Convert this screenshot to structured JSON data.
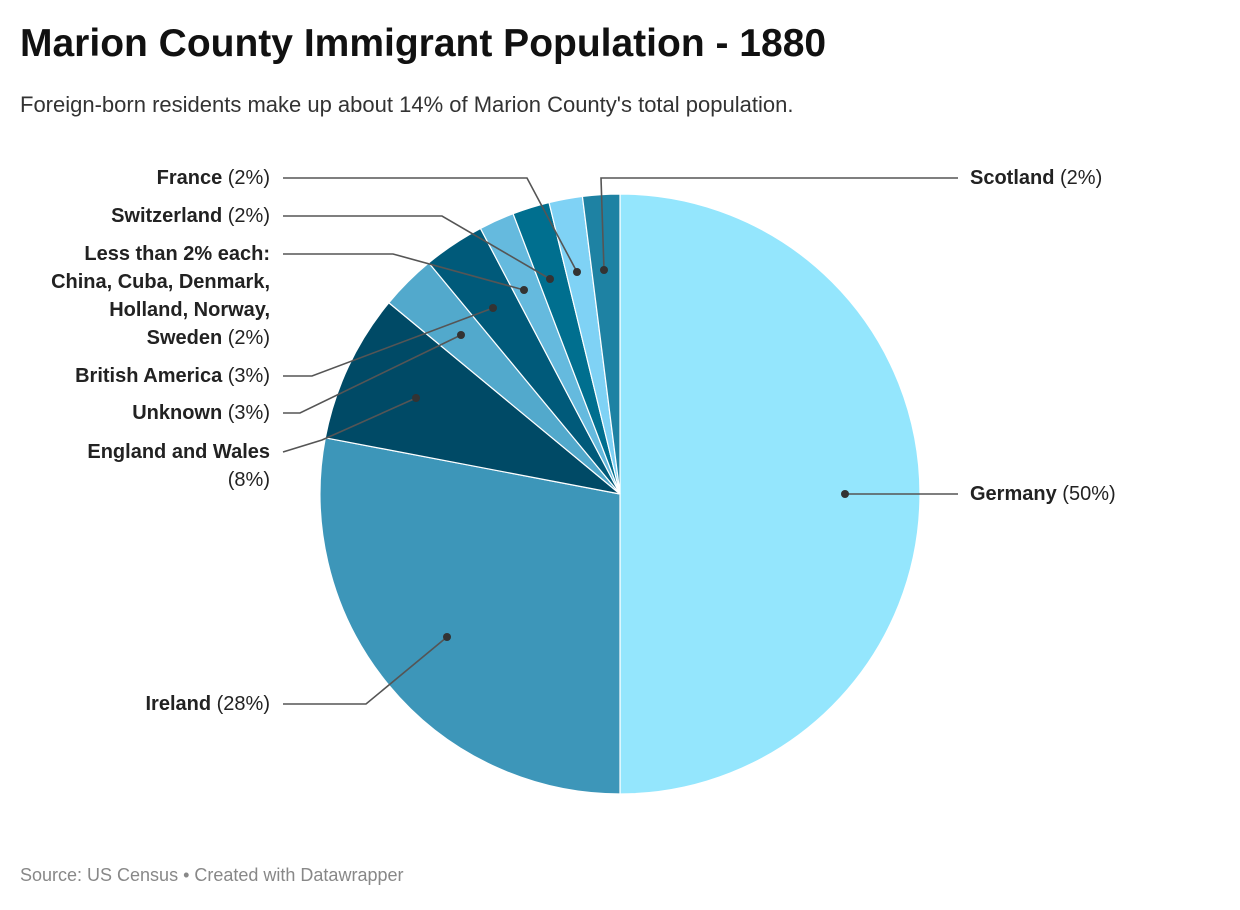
{
  "title": "Marion County Immigrant Population - 1880",
  "subtitle": "Foreign-born residents make up about 14% of Marion County's total population.",
  "footer": "Source: US Census • Created with Datawrapper",
  "chart_data": {
    "type": "pie",
    "start": "top, clockwise",
    "slices": [
      {
        "name": "Germany",
        "label": "(50%)",
        "value": 50,
        "color": "#94e6fd"
      },
      {
        "name": "Ireland",
        "label": "(28%)",
        "value": 28,
        "color": "#3d96b9"
      },
      {
        "name": "England and Wales",
        "label": "(8%)",
        "value": 8,
        "color": "#004a66"
      },
      {
        "name": "Unknown",
        "label": "(3%)",
        "value": 3,
        "color": "#52a9cc"
      },
      {
        "name": "British America",
        "label": "(3%)",
        "value": 3.3,
        "color": "#005a7a"
      },
      {
        "name": "Less than 2% each: China, Cuba, Denmark, Holland, Norway, Sweden",
        "label": "(2%)",
        "value": 1.9,
        "color": "#65bade"
      },
      {
        "name": "Switzerland",
        "label": "(2%)",
        "value": 2,
        "color": "#006f8f"
      },
      {
        "name": "France",
        "label": "(2%)",
        "value": 1.8,
        "color": "#7fd2f5"
      },
      {
        "name": "Scotland",
        "label": "(2%)",
        "value": 2,
        "color": "#1e82a3"
      }
    ]
  }
}
